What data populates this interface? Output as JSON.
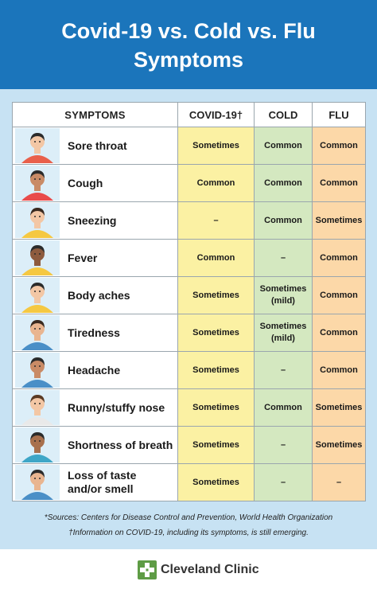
{
  "header": {
    "title_line1": "Covid-19 vs. Cold vs. Flu",
    "title_line2": "Symptoms"
  },
  "table": {
    "headers": {
      "symptoms": "SYMPTOMS",
      "covid": "COVID-19†",
      "cold": "COLD",
      "flu": "FLU"
    },
    "rows": [
      {
        "symptom": "Sore throat",
        "covid": "Sometimes",
        "cold": "Common",
        "flu": "Common"
      },
      {
        "symptom": "Cough",
        "covid": "Common",
        "cold": "Common",
        "flu": "Common"
      },
      {
        "symptom": "Sneezing",
        "covid": "–",
        "cold": "Common",
        "flu": "Sometimes"
      },
      {
        "symptom": "Fever",
        "covid": "Common",
        "cold": "–",
        "flu": "Common"
      },
      {
        "symptom": "Body aches",
        "covid": "Sometimes",
        "cold": "Sometimes (mild)",
        "flu": "Common"
      },
      {
        "symptom": "Tiredness",
        "covid": "Sometimes",
        "cold": "Sometimes (mild)",
        "flu": "Common"
      },
      {
        "symptom": "Headache",
        "covid": "Sometimes",
        "cold": "–",
        "flu": "Common"
      },
      {
        "symptom": "Runny/stuffy nose",
        "covid": "Sometimes",
        "cold": "Common",
        "flu": "Sometimes"
      },
      {
        "symptom": "Shortness of breath",
        "covid": "Sometimes",
        "cold": "–",
        "flu": "Sometimes"
      },
      {
        "symptom": "Loss of taste and/or smell",
        "covid": "Sometimes",
        "cold": "–",
        "flu": "–"
      }
    ]
  },
  "notes": {
    "sources": "*Sources: Centers for Disease Control and Prevention, World Health Organization",
    "covid_note": "†Information on COVID-19, including its symptoms, is still emerging."
  },
  "footer": {
    "brand": "Cleveland Clinic"
  },
  "colors": {
    "header_bg": "#1b75bb",
    "band_bg": "#c7e2f3",
    "covid_col": "#fbf1a3",
    "cold_col": "#d4e8c0",
    "flu_col": "#fcd8a8",
    "brand_green": "#5e9c45"
  },
  "icons": [
    "person-illustration",
    "cleveland-clinic-logo"
  ]
}
